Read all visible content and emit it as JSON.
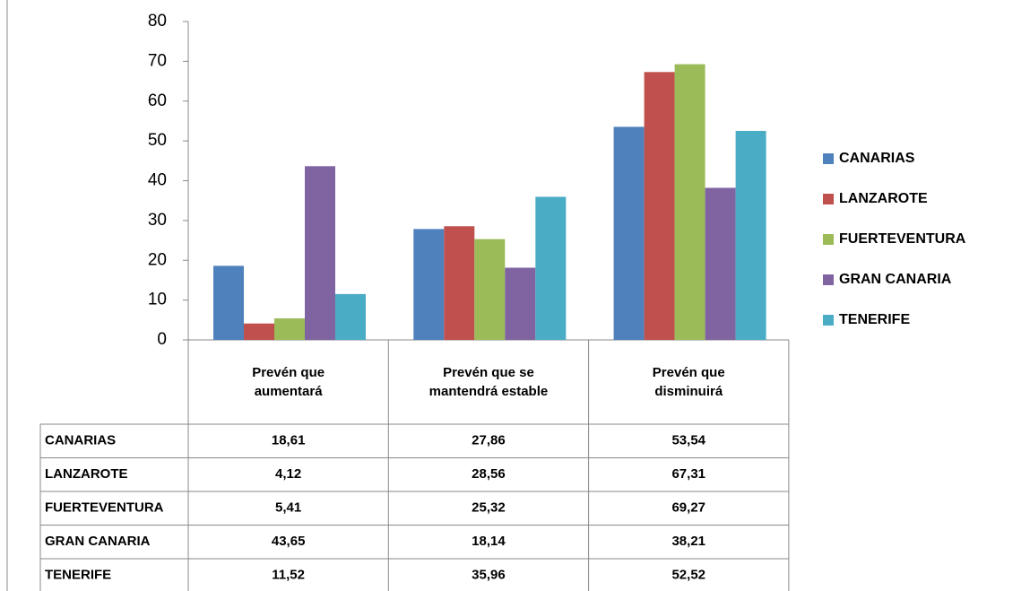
{
  "chart_data": {
    "type": "bar",
    "categories": [
      "Prevén que aumentará",
      "Prevén que se mantendrá estable",
      "Prevén que disminuirá"
    ],
    "series": [
      {
        "name": "CANARIAS",
        "color": "#4f81bd",
        "values": [
          18.61,
          27.86,
          53.54
        ],
        "value_labels": [
          "18,61",
          "27,86",
          "53,54"
        ]
      },
      {
        "name": "LANZAROTE",
        "color": "#c0504d",
        "values": [
          4.12,
          28.56,
          67.31
        ],
        "value_labels": [
          "4,12",
          "28,56",
          "67,31"
        ]
      },
      {
        "name": "FUERTEVENTURA",
        "color": "#9bbb59",
        "values": [
          5.41,
          25.32,
          69.27
        ],
        "value_labels": [
          "5,41",
          "25,32",
          "69,27"
        ]
      },
      {
        "name": "GRAN CANARIA",
        "color": "#8064a2",
        "values": [
          43.65,
          18.14,
          38.21
        ],
        "value_labels": [
          "43,65",
          "18,14",
          "38,21"
        ]
      },
      {
        "name": "TENERIFE",
        "color": "#4bacc6",
        "values": [
          11.52,
          35.96,
          52.52
        ],
        "value_labels": [
          "11,52",
          "35,96",
          "52,52"
        ]
      }
    ],
    "ylim": [
      0,
      80
    ],
    "yticks": [
      0,
      10,
      20,
      30,
      40,
      50,
      60,
      70,
      80
    ],
    "grid": false,
    "legend": "right"
  }
}
